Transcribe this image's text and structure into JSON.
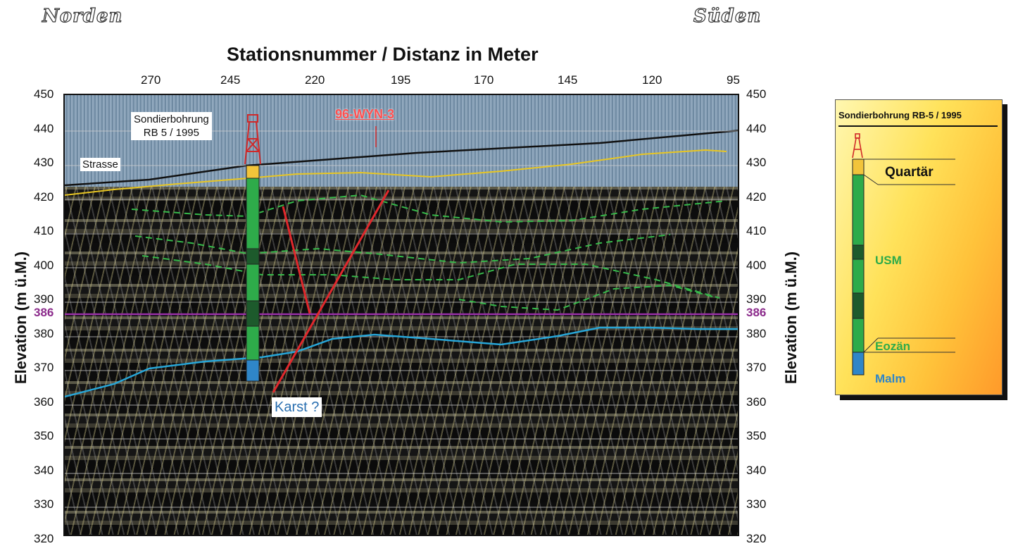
{
  "directions": {
    "north": "Norden",
    "south": "Süden"
  },
  "x_axis": {
    "title": "Stationsnummer / Distanz in Meter",
    "ticks": [
      "270",
      "245",
      "220",
      "195",
      "170",
      "145",
      "120",
      "95"
    ]
  },
  "y_axis": {
    "label": "Elevation (m ü.M.)",
    "ticks": [
      "450",
      "440",
      "430",
      "420",
      "410",
      "400",
      "390",
      "380",
      "370",
      "360",
      "350",
      "340",
      "330",
      "320"
    ],
    "highlight_tick": "386"
  },
  "annotations": {
    "borehole": "Sondierbohrung\nRB 5 / 1995",
    "line_name": "96-WYN-3",
    "road": "Strasse",
    "karst": "Karst ?"
  },
  "colors": {
    "quartaer": "#f2c43a",
    "usm_light": "#2eab4a",
    "usm_dark": "#1d5a2c",
    "malm": "#2f86c8",
    "horizon_386": "#9a30a8",
    "base_reflector": "#27a6d8",
    "surface_horizon": "#e8c623",
    "faults": "#e0282c",
    "dashed_horizons": "#36b94a"
  },
  "legend": {
    "title": "Sondierbohrung RB-5 / 1995",
    "units": [
      {
        "name": "Quartär",
        "color": "#f2c43a"
      },
      {
        "name": "USM",
        "color": "#2eab4a"
      },
      {
        "name": "Eozän",
        "color": "#1d5a2c"
      },
      {
        "name": "Malm",
        "color": "#2f86c8"
      }
    ]
  }
}
